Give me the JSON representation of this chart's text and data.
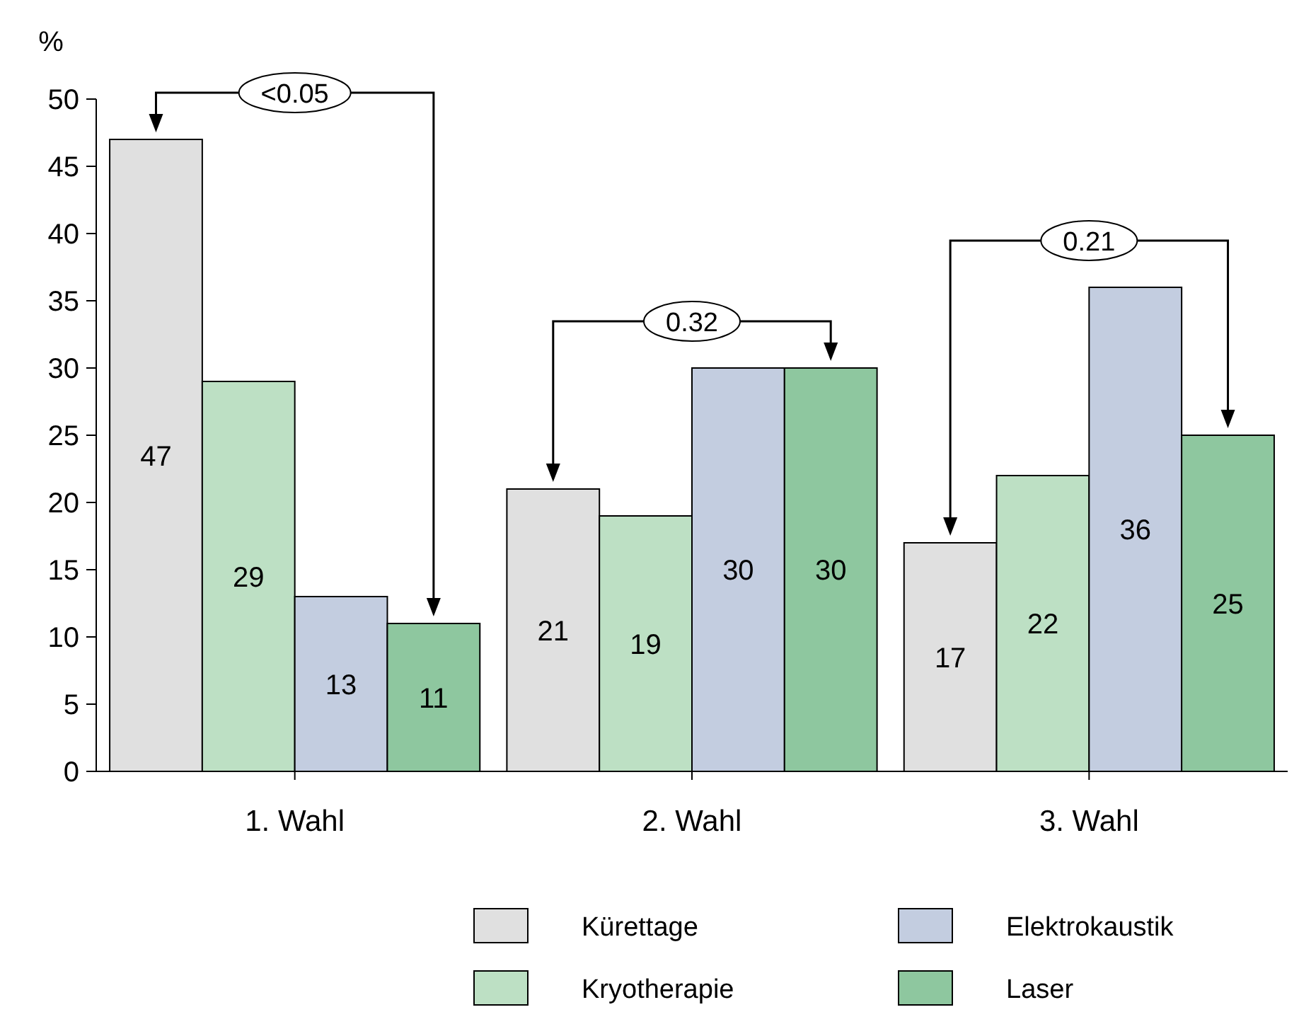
{
  "chart_data": {
    "type": "bar",
    "ylabel": "%",
    "categories": [
      "1. Wahl",
      "2. Wahl",
      "3. Wahl"
    ],
    "series": [
      {
        "name": "Kürettage",
        "color": "#e0e0e0",
        "values": [
          47,
          21,
          17
        ]
      },
      {
        "name": "Kryotherapie",
        "color": "#bde0c4",
        "values": [
          29,
          19,
          22
        ]
      },
      {
        "name": "Elektrokaustik",
        "color": "#c3cde0",
        "values": [
          13,
          30,
          36
        ]
      },
      {
        "name": "Laser",
        "color": "#8ec79f",
        "values": [
          11,
          30,
          25
        ]
      }
    ],
    "ylim": [
      0,
      50
    ],
    "yticks": [
      0,
      5,
      10,
      15,
      20,
      25,
      30,
      35,
      40,
      45,
      50
    ],
    "data_labels": true,
    "legend": "bottom",
    "grid": false,
    "annotations": [
      "<0.05",
      "0.32",
      "0.21"
    ]
  }
}
